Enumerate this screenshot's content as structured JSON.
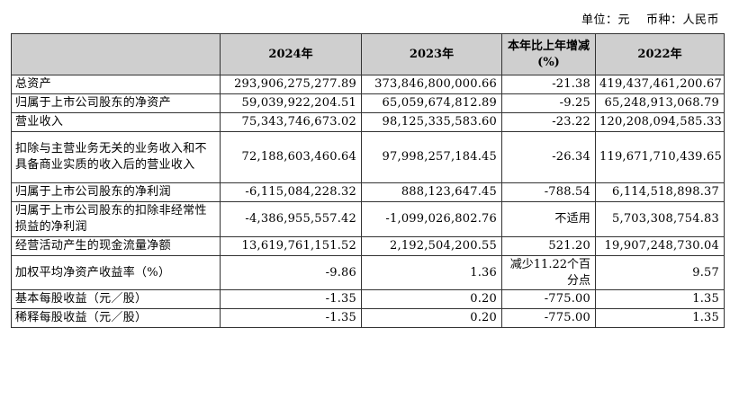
{
  "unit": {
    "unit_label": "单位：元",
    "currency_label": "币种：人民币"
  },
  "table": {
    "headers": [
      "",
      "2024年",
      "2023年",
      "本年比上年增减(%)",
      "2022年"
    ],
    "rows": [
      {
        "label": "总资产",
        "v2024": "293,906,275,277.89",
        "v2023": "373,846,800,000.66",
        "change": "-21.38",
        "v2022": "419,437,461,200.67"
      },
      {
        "label": "归属于上市公司股东的净资产",
        "v2024": "59,039,922,204.51",
        "v2023": "65,059,674,812.89",
        "change": "-9.25",
        "v2022": "65,248,913,068.79"
      },
      {
        "label": "营业收入",
        "v2024": "75,343,746,673.02",
        "v2023": "98,125,335,583.60",
        "change": "-23.22",
        "v2022": "120,208,094,585.33"
      },
      {
        "label": "扣除与主营业务无关的业务收入和不具备商业实质的收入后的营业收入",
        "v2024": "72,188,603,460.64",
        "v2023": "97,998,257,184.45",
        "change": "-26.34",
        "v2022": "119,671,710,439.65"
      },
      {
        "label": "归属于上市公司股东的净利润",
        "v2024": "-6,115,084,228.32",
        "v2023": "888,123,647.45",
        "change": "-788.54",
        "v2022": "6,114,518,898.37"
      },
      {
        "label": "归属于上市公司股东的扣除非经常性损益的净利润",
        "v2024": "-4,386,955,557.42",
        "v2023": "-1,099,026,802.76",
        "change": "不适用",
        "v2022": "5,703,308,754.83"
      },
      {
        "label": "经营活动产生的现金流量净额",
        "v2024": "13,619,761,151.52",
        "v2023": "2,192,504,200.55",
        "change": "521.20",
        "v2022": "19,907,248,730.04"
      },
      {
        "label": "加权平均净资产收益率（%）",
        "v2024": "-9.86",
        "v2023": "1.36",
        "change": "减少11.22个百分点",
        "v2022": "9.57"
      },
      {
        "label": "基本每股收益（元／股）",
        "v2024": "-1.35",
        "v2023": "0.20",
        "change": "-775.00",
        "v2022": "1.35"
      },
      {
        "label": "稀释每股收益（元／股）",
        "v2024": "-1.35",
        "v2023": "0.20",
        "change": "-775.00",
        "v2022": "1.35"
      }
    ]
  }
}
